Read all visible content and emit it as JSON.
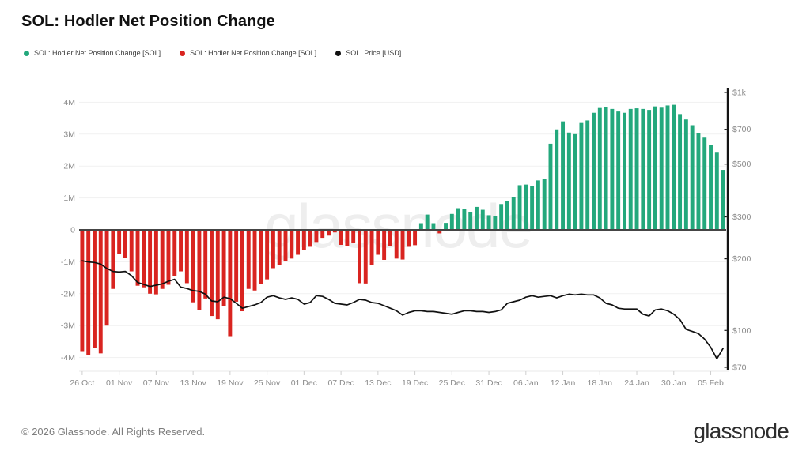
{
  "header": {
    "title": "SOL: Hodler Net Position Change"
  },
  "legend": [
    {
      "label": "SOL: Hodler Net Position Change [SOL]",
      "color": "#23a87c"
    },
    {
      "label": "SOL: Hodler Net Position Change [SOL]",
      "color": "#d92420"
    },
    {
      "label": "SOL: Price [USD]",
      "color": "#111111"
    }
  ],
  "watermark": "glassnode",
  "footer": {
    "copyright": "© 2026 Glassnode. All Rights Reserved.",
    "logo": "glassnode"
  },
  "chart_data": {
    "type": "bar+line",
    "title": "SOL: Hodler Net Position Change",
    "grid": "horizontal",
    "x": [
      "26 Oct",
      "27 Oct",
      "28 Oct",
      "29 Oct",
      "30 Oct",
      "31 Oct",
      "01 Nov",
      "02 Nov",
      "03 Nov",
      "04 Nov",
      "05 Nov",
      "06 Nov",
      "07 Nov",
      "08 Nov",
      "09 Nov",
      "10 Nov",
      "11 Nov",
      "12 Nov",
      "13 Nov",
      "14 Nov",
      "15 Nov",
      "16 Nov",
      "17 Nov",
      "18 Nov",
      "19 Nov",
      "20 Nov",
      "21 Nov",
      "22 Nov",
      "23 Nov",
      "24 Nov",
      "25 Nov",
      "26 Nov",
      "27 Nov",
      "28 Nov",
      "29 Nov",
      "30 Nov",
      "01 Dec",
      "02 Dec",
      "03 Dec",
      "04 Dec",
      "05 Dec",
      "06 Dec",
      "07 Dec",
      "08 Dec",
      "09 Dec",
      "10 Dec",
      "11 Dec",
      "12 Dec",
      "13 Dec",
      "14 Dec",
      "15 Dec",
      "16 Dec",
      "17 Dec",
      "18 Dec",
      "19 Dec",
      "20 Dec",
      "21 Dec",
      "22 Dec",
      "23 Dec",
      "24 Dec",
      "25 Dec",
      "26 Dec",
      "27 Dec",
      "28 Dec",
      "29 Dec",
      "30 Dec",
      "31 Dec",
      "01 Jan",
      "02 Jan",
      "03 Jan",
      "04 Jan",
      "05 Jan",
      "06 Jan",
      "07 Jan",
      "08 Jan",
      "09 Jan",
      "10 Jan",
      "11 Jan",
      "12 Jan",
      "13 Jan",
      "14 Jan",
      "15 Jan",
      "16 Jan",
      "17 Jan",
      "18 Jan",
      "19 Jan",
      "20 Jan",
      "21 Jan",
      "22 Jan",
      "23 Jan",
      "24 Jan",
      "25 Jan",
      "26 Jan",
      "27 Jan",
      "28 Jan",
      "29 Jan",
      "30 Jan",
      "31 Jan",
      "01 Feb",
      "02 Feb",
      "03 Feb",
      "04 Feb",
      "05 Feb",
      "06 Feb",
      "07 Feb"
    ],
    "series": [
      {
        "name": "SOL: Hodler Net Position Change [SOL]",
        "type": "bar",
        "axis": "left",
        "unit": "M SOL",
        "positive_color": "#23a87c",
        "negative_color": "#d92420",
        "values": [
          -3.8,
          -3.92,
          -3.7,
          -3.87,
          -3.0,
          -1.85,
          -0.75,
          -0.88,
          -1.3,
          -1.75,
          -1.8,
          -2.0,
          -2.02,
          -1.85,
          -1.72,
          -1.45,
          -1.3,
          -1.67,
          -2.27,
          -2.52,
          -2.15,
          -2.7,
          -2.8,
          -2.4,
          -3.33,
          -2.25,
          -2.55,
          -1.85,
          -1.9,
          -1.7,
          -1.55,
          -1.2,
          -1.1,
          -0.97,
          -0.9,
          -0.78,
          -0.62,
          -0.53,
          -0.38,
          -0.25,
          -0.18,
          -0.08,
          -0.47,
          -0.5,
          -0.4,
          -1.67,
          -1.68,
          -1.1,
          -0.78,
          -0.94,
          -0.52,
          -0.9,
          -0.93,
          -0.53,
          -0.48,
          0.21,
          0.48,
          0.21,
          -0.11,
          0.22,
          0.5,
          0.68,
          0.66,
          0.56,
          0.72,
          0.63,
          0.46,
          0.44,
          0.81,
          0.9,
          1.03,
          1.4,
          1.42,
          1.38,
          1.55,
          1.6,
          2.7,
          3.15,
          3.4,
          3.05,
          3.0,
          3.35,
          3.43,
          3.67,
          3.82,
          3.85,
          3.79,
          3.71,
          3.67,
          3.79,
          3.81,
          3.79,
          3.76,
          3.87,
          3.83,
          3.9,
          3.92,
          3.63,
          3.46,
          3.28,
          3.04,
          2.89,
          2.67,
          2.42,
          1.88
        ]
      },
      {
        "name": "SOL: Price [USD]",
        "type": "line",
        "axis": "right",
        "unit": "USD",
        "color": "#111111",
        "values": [
          196,
          194,
          193,
          190,
          182,
          177,
          176,
          177,
          170,
          159,
          156,
          153,
          155,
          157,
          161,
          164,
          152,
          150,
          147,
          146,
          142,
          133,
          132,
          138,
          136,
          130,
          124,
          126,
          128,
          131,
          138,
          140,
          137,
          135,
          137,
          135,
          129,
          131,
          140,
          139,
          135,
          130,
          129,
          128,
          131,
          135,
          134,
          131,
          130,
          127,
          124,
          121,
          116,
          119,
          121,
          121,
          120,
          120,
          119,
          118,
          117,
          119,
          121,
          121,
          120,
          120,
          119,
          120,
          122,
          130,
          132,
          134,
          138,
          140,
          138,
          139,
          140,
          137,
          140,
          142,
          141,
          142,
          141,
          141,
          137,
          130,
          128,
          124,
          123,
          123,
          123,
          117,
          115,
          122,
          123,
          121,
          117,
          111,
          101,
          99,
          97,
          92,
          85,
          76,
          84
        ]
      }
    ],
    "left_axis": {
      "ticks": [
        "4M",
        "3M",
        "2M",
        "1M",
        "0",
        "-1M",
        "-2M",
        "-3M",
        "-4M"
      ],
      "values": [
        4,
        3,
        2,
        1,
        0,
        -1,
        -2,
        -3,
        -4
      ],
      "range": [
        -4.5,
        4.5
      ],
      "scale": "linear"
    },
    "right_axis": {
      "ticks": [
        "$1k",
        "$700",
        "$500",
        "$300",
        "$200",
        "$100",
        "$70"
      ],
      "values": [
        1000,
        700,
        500,
        300,
        200,
        100,
        70
      ],
      "range": [
        70,
        1000
      ],
      "scale": "log"
    },
    "x_ticks": [
      {
        "label": "26 Oct",
        "index": 0
      },
      {
        "label": "01 Nov",
        "index": 6
      },
      {
        "label": "07 Nov",
        "index": 12
      },
      {
        "label": "13 Nov",
        "index": 18
      },
      {
        "label": "19 Nov",
        "index": 24
      },
      {
        "label": "25 Nov",
        "index": 30
      },
      {
        "label": "01 Dec",
        "index": 36
      },
      {
        "label": "07 Dec",
        "index": 42
      },
      {
        "label": "13 Dec",
        "index": 48
      },
      {
        "label": "19 Dec",
        "index": 54
      },
      {
        "label": "25 Dec",
        "index": 60
      },
      {
        "label": "31 Dec",
        "index": 66
      },
      {
        "label": "06 Jan",
        "index": 72
      },
      {
        "label": "12 Jan",
        "index": 78
      },
      {
        "label": "18 Jan",
        "index": 84
      },
      {
        "label": "24 Jan",
        "index": 90
      },
      {
        "label": "30 Jan",
        "index": 96
      },
      {
        "label": "05 Feb",
        "index": 102
      }
    ]
  }
}
